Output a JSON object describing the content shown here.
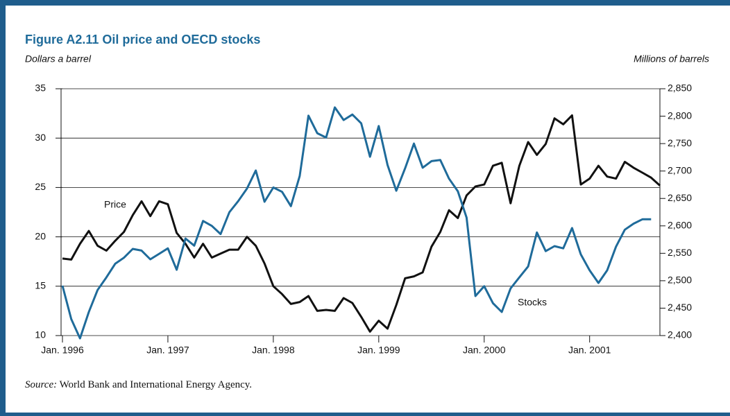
{
  "chart_data": {
    "type": "line",
    "title": "Figure A2.11  Oil price and OECD stocks",
    "y_label": "Dollars a barrel",
    "y2_label": "Millions of barrels",
    "source_label": "Source:",
    "source_text": "World Bank and International Energy Agency.",
    "annotations": [
      "Price",
      "Stocks"
    ],
    "x": [
      0,
      1,
      2,
      3,
      4,
      5,
      6,
      7,
      8,
      9,
      10,
      11,
      12,
      13,
      14,
      15,
      16,
      17,
      18,
      19,
      20,
      21,
      22,
      23,
      24,
      25,
      26,
      27,
      28,
      29,
      30,
      31,
      32,
      33,
      34,
      35,
      36,
      37,
      38,
      39,
      40,
      41,
      42,
      43,
      44,
      45,
      46,
      47,
      48,
      49,
      50,
      51,
      52,
      53,
      54,
      55,
      56,
      57,
      58,
      59,
      60,
      61,
      62,
      63,
      64,
      65,
      66,
      67,
      68
    ],
    "xlim": [
      0,
      68
    ],
    "xticks": [
      {
        "value": 0,
        "label": "Jan. 1996"
      },
      {
        "value": 12,
        "label": "Jan. 1997"
      },
      {
        "value": 24,
        "label": "Jan. 1998"
      },
      {
        "value": 36,
        "label": "Jan. 1999"
      },
      {
        "value": 48,
        "label": "Jan. 2000"
      },
      {
        "value": 60,
        "label": "Jan. 2001"
      }
    ],
    "ylim": [
      10,
      35
    ],
    "yticks": [
      10,
      15,
      20,
      25,
      30,
      35
    ],
    "y2lim": [
      2400,
      2850
    ],
    "y2ticks": [
      {
        "value": 2400,
        "label": "2,400"
      },
      {
        "value": 2450,
        "label": "2,450"
      },
      {
        "value": 2500,
        "label": "2,500"
      },
      {
        "value": 2550,
        "label": "2,550"
      },
      {
        "value": 2600,
        "label": "2,600"
      },
      {
        "value": 2650,
        "label": "2,650"
      },
      {
        "value": 2700,
        "label": "2,700"
      },
      {
        "value": 2750,
        "label": "2,750"
      },
      {
        "value": 2800,
        "label": "2,800"
      },
      {
        "value": 2850,
        "label": "2,850"
      }
    ],
    "grid": true,
    "series": [
      {
        "name": "Price",
        "color": "#111111",
        "values": [
          17.8,
          17.7,
          19.3,
          20.6,
          19.1,
          18.6,
          19.6,
          20.5,
          22.2,
          23.6,
          22.1,
          23.6,
          23.3,
          20.4,
          19.3,
          17.9,
          19.3,
          17.9,
          18.3,
          18.7,
          18.7,
          20.0,
          19.1,
          17.3,
          15.0,
          14.2,
          13.2,
          13.4,
          14.0,
          12.5,
          12.6,
          12.5,
          13.8,
          13.3,
          11.9,
          10.4,
          11.5,
          10.7,
          13.1,
          15.8,
          16.0,
          16.4,
          19.0,
          20.5,
          22.7,
          21.9,
          24.2,
          25.1,
          25.3,
          27.2,
          27.5,
          23.4,
          27.2,
          29.6,
          28.3,
          29.4,
          32.0,
          31.4,
          32.3,
          25.3,
          25.9,
          27.2,
          26.1,
          25.9,
          27.6,
          27.0,
          26.5,
          26.0,
          25.2
        ]
      },
      {
        "name": "Stocks",
        "color": "#1f6b9a",
        "axis": "y2",
        "values": [
          2491,
          2430,
          2395,
          2443,
          2483,
          2506,
          2531,
          2542,
          2558,
          2555,
          2539,
          2549,
          2559,
          2520,
          2577,
          2564,
          2609,
          2600,
          2585,
          2625,
          2645,
          2668,
          2701,
          2644,
          2670,
          2662,
          2636,
          2691,
          2801,
          2769,
          2761,
          2816,
          2793,
          2803,
          2787,
          2726,
          2782,
          2711,
          2664,
          2705,
          2750,
          2706,
          2718,
          2720,
          2686,
          2663,
          2615,
          2472,
          2490,
          2459,
          2443,
          2486,
          2506,
          2526,
          2588,
          2554,
          2563,
          2559,
          2596,
          2548,
          2519,
          2496,
          2519,
          2562,
          2593,
          2604,
          2612,
          2612,
          null
        ]
      }
    ]
  }
}
